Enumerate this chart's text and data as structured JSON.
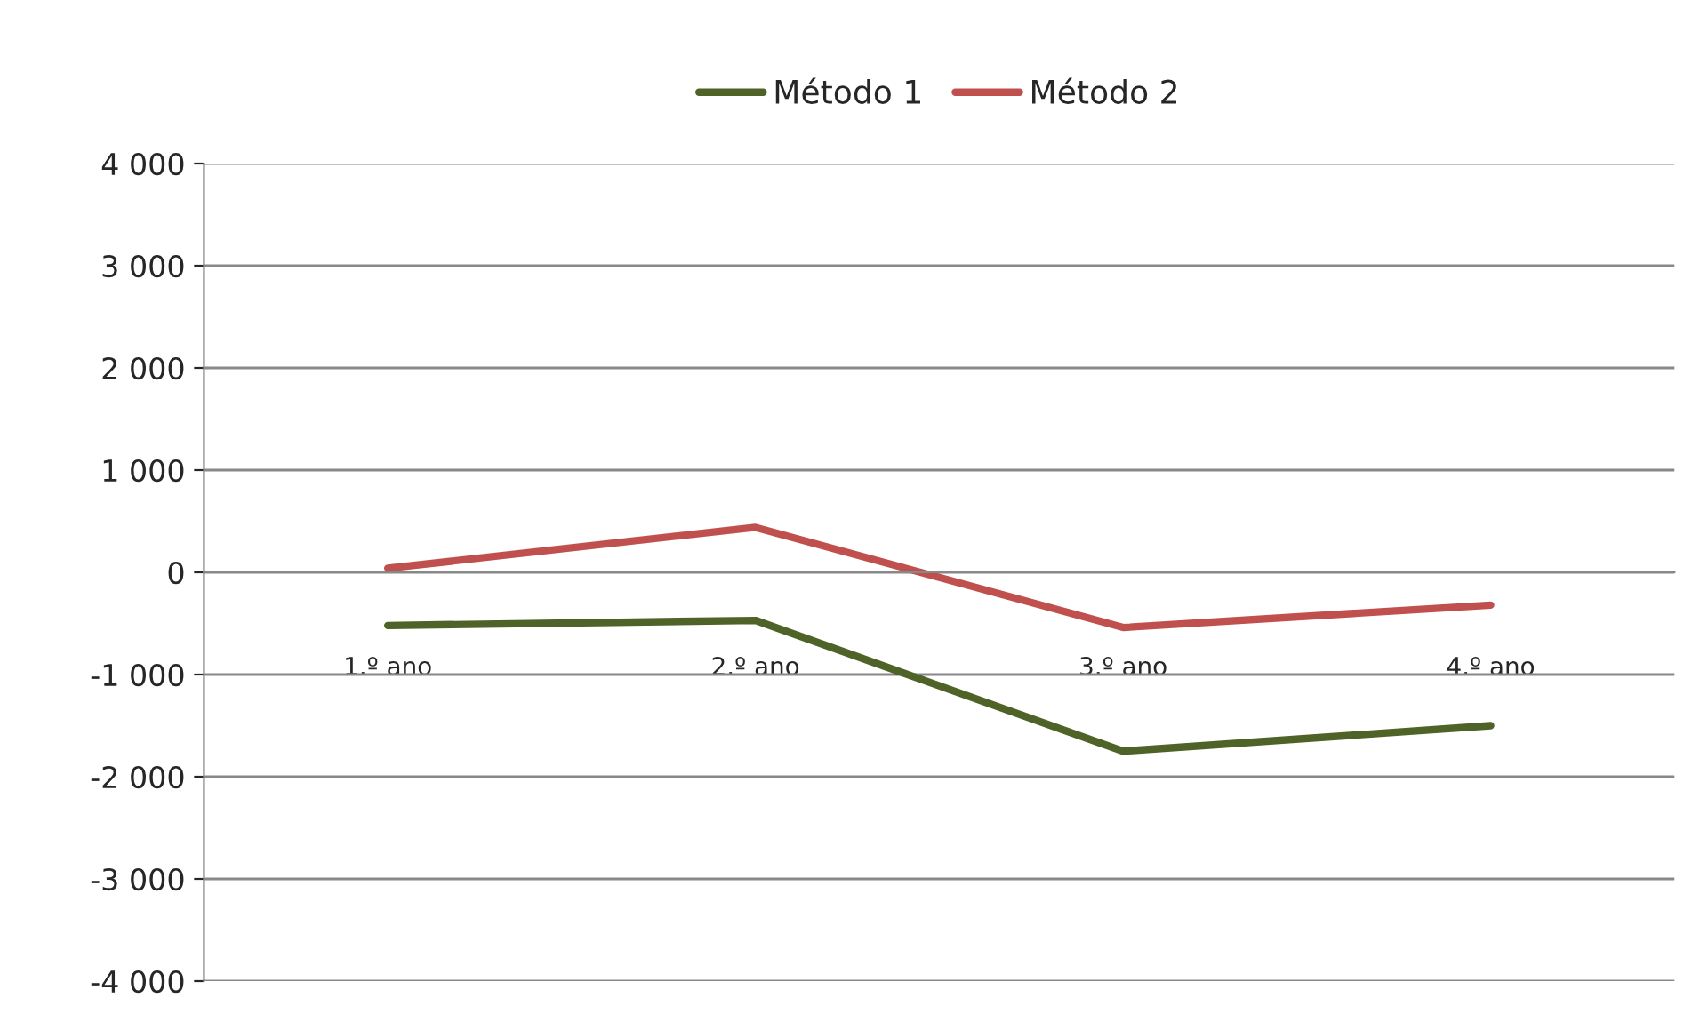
{
  "chart_data": {
    "type": "line",
    "categories": [
      "1.º ano",
      "2.º ano",
      "3.º ano",
      "4.º ano"
    ],
    "series": [
      {
        "name": "Método 1",
        "color": "#4f6228",
        "values": [
          -520,
          -470,
          -1750,
          -1500
        ]
      },
      {
        "name": "Método 2",
        "color": "#c0504d",
        "values": [
          40,
          440,
          -540,
          -320
        ]
      }
    ],
    "ylim": [
      -4000,
      4000
    ],
    "yticks": [
      {
        "value": -4000,
        "label": "-4 000"
      },
      {
        "value": -3000,
        "label": "-3 000"
      },
      {
        "value": -2000,
        "label": "-2 000"
      },
      {
        "value": -1000,
        "label": "-1 000"
      },
      0,
      {
        "value": 1000,
        "label": "1 000"
      },
      {
        "value": 2000,
        "label": "2 000"
      },
      {
        "value": 3000,
        "label": "3 000"
      },
      {
        "value": 4000,
        "label": "4 000"
      }
    ],
    "grid": "y",
    "legend": "top",
    "marker": "none",
    "line_style": "solid"
  }
}
